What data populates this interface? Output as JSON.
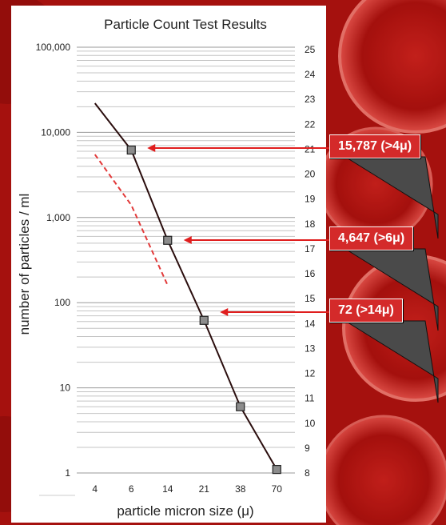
{
  "chart_data": {
    "type": "line",
    "title": "Particle Count Test Results",
    "xlabel": "particle micron size (μ)",
    "ylabel": "number of particles / ml",
    "categories": [
      "4",
      "6",
      "14",
      "21",
      "38",
      "70"
    ],
    "y_scale": "log",
    "ylim": [
      1,
      100000
    ],
    "y_ticks": [
      1,
      10,
      100,
      1000,
      10000,
      100000
    ],
    "y_tick_labels": [
      "1",
      "10",
      "100",
      "1,000",
      "10,000",
      "100,000"
    ],
    "y2_ticks": [
      "25",
      "24",
      "23",
      "22",
      "21",
      "20",
      "19",
      "18",
      "17",
      "16",
      "15",
      "14",
      "13",
      "12",
      "11",
      "10",
      "9",
      "8"
    ],
    "grid": true,
    "series": [
      {
        "style": "solid",
        "color": "#2a0d0d",
        "x": [
          4,
          6,
          14,
          21,
          38,
          70
        ],
        "values": [
          22000,
          6200,
          540,
          62,
          6,
          1.1
        ]
      },
      {
        "style": "dashed",
        "color": "#e23a3a",
        "x": [
          4,
          6,
          14
        ],
        "values": [
          5500,
          1400,
          160
        ]
      }
    ],
    "annotations": [
      {
        "text": "15,787 (>4μ)",
        "target_x": "6"
      },
      {
        "text": "4,647 (>6μ)",
        "target_x": "14"
      },
      {
        "text": "72 (>14μ)",
        "target_x": "21"
      }
    ]
  },
  "colors": {
    "background": "#b0120f",
    "callout": "#d42a2a",
    "arrow": "#e01e1e"
  }
}
